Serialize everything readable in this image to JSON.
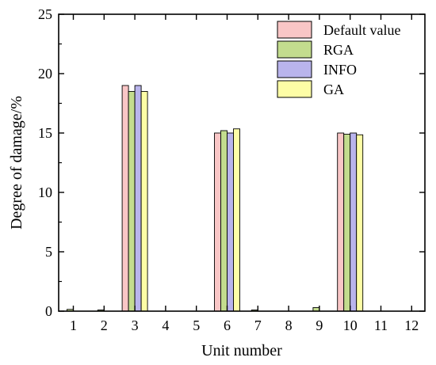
{
  "chart_data": {
    "type": "bar",
    "title": "",
    "xlabel": "Unit number",
    "ylabel": "Degree of damage/%",
    "categories": [
      "1",
      "2",
      "3",
      "4",
      "5",
      "6",
      "7",
      "8",
      "9",
      "10",
      "11",
      "12"
    ],
    "ylim": [
      0,
      25
    ],
    "yticks": [
      "0",
      "5",
      "10",
      "15",
      "20",
      "25"
    ],
    "grid": false,
    "legend_position": "top-right",
    "series": [
      {
        "name": "Default value",
        "color": "#f9c6c6",
        "values": [
          0,
          0,
          19.0,
          0,
          0,
          15.0,
          0,
          0,
          0,
          15.0,
          0,
          0
        ]
      },
      {
        "name": "RGA",
        "color": "#c3dc8e",
        "values": [
          0.15,
          0.1,
          18.5,
          0,
          0,
          15.2,
          0.1,
          0,
          0.3,
          14.9,
          0,
          0
        ]
      },
      {
        "name": "INFO",
        "color": "#b9b4ec",
        "values": [
          0,
          0,
          19.0,
          0,
          0,
          15.0,
          0,
          0,
          0,
          15.0,
          0,
          0
        ]
      },
      {
        "name": "GA",
        "color": "#fdfda6",
        "values": [
          0,
          0,
          18.5,
          0,
          0,
          15.35,
          0,
          0,
          0,
          14.85,
          0,
          0
        ]
      }
    ]
  }
}
